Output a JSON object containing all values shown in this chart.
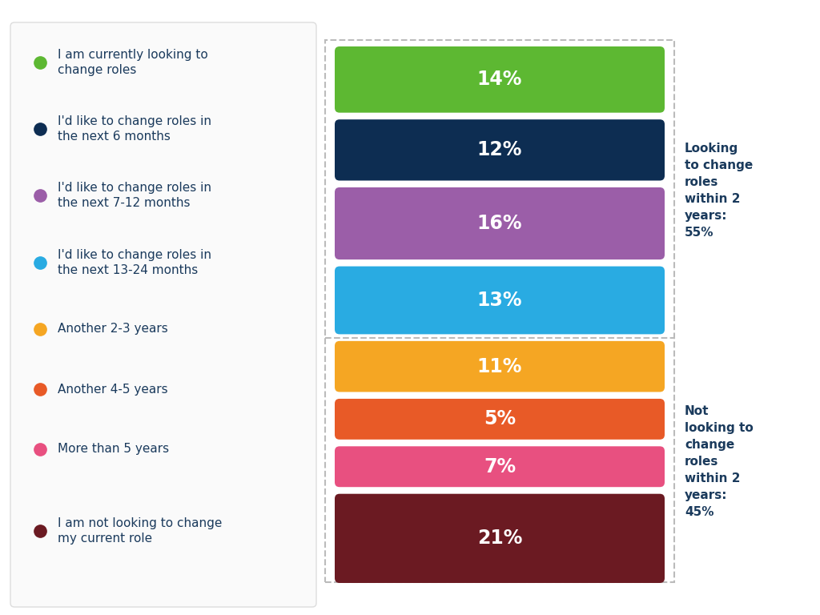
{
  "categories": [
    "I am currently looking to\nchange roles",
    "I'd like to change roles in\nthe next 6 months",
    "I'd like to change roles in\nthe next 7-12 months",
    "I'd like to change roles in\nthe next 13-24 months",
    "Another 2-3 years",
    "Another 4-5 years",
    "More than 5 years",
    "I am not looking to change\nmy current role"
  ],
  "values": [
    "14%",
    "12%",
    "16%",
    "13%",
    "11%",
    "5%",
    "7%",
    "21%"
  ],
  "bar_colors": [
    "#5DB832",
    "#0D2D52",
    "#9B5EA8",
    "#29ABE2",
    "#F5A623",
    "#E85A27",
    "#E85080",
    "#6B1A22"
  ],
  "dot_colors": [
    "#5DB832",
    "#0D2D52",
    "#9B5EA8",
    "#29ABE2",
    "#F5A623",
    "#E85A27",
    "#E85080",
    "#6B1A22"
  ],
  "background": "#FFFFFF",
  "text_color": "#FFFFFF",
  "label_color": "#1A3A5C",
  "annotation_color": "#1A3A5C",
  "group1_label": "Looking\nto change\nroles\nwithin 2\nyears:\n55%",
  "group2_label": "Not\nlooking to\nchange\nroles\nwithin 2\nyears:\n45%",
  "border_color": "#BBBBBB",
  "legend_border_color": "#DDDDDD",
  "legend_bg": "#FAFAFA"
}
